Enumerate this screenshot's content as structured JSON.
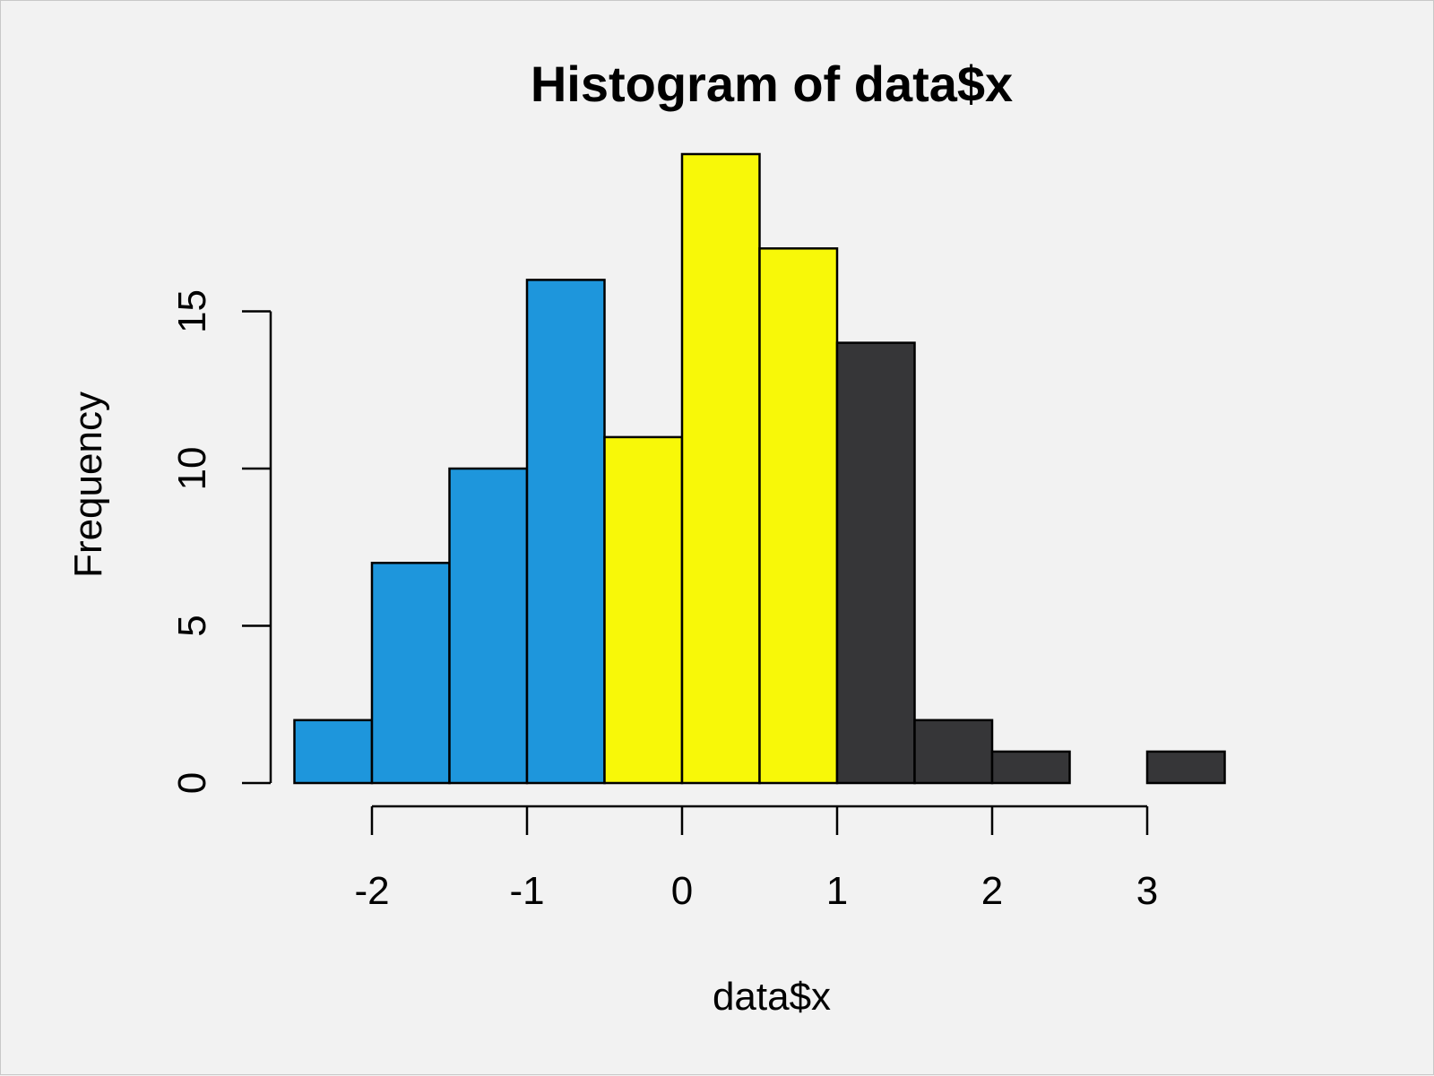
{
  "chart_data": {
    "type": "bar",
    "title": "Histogram of data$x",
    "xlabel": "data$x",
    "ylabel": "Frequency",
    "bin_edges": [
      -2.5,
      -2.0,
      -1.5,
      -1.0,
      -0.5,
      0.0,
      0.5,
      1.0,
      1.5,
      2.0,
      2.5,
      3.0,
      3.5
    ],
    "values": [
      2,
      7,
      10,
      16,
      11,
      20,
      17,
      14,
      2,
      1,
      0,
      1
    ],
    "colors": [
      "#1e96dc",
      "#1e96dc",
      "#1e96dc",
      "#1e96dc",
      "#f8f808",
      "#f8f808",
      "#f8f808",
      "#363638",
      "#363638",
      "#363638",
      "#363638",
      "#363638"
    ],
    "xticks": [
      -2,
      -1,
      0,
      1,
      2,
      3
    ],
    "xtick_labels": [
      "-2",
      "-1",
      "0",
      "1",
      "2",
      "3"
    ],
    "yticks": [
      0,
      5,
      10,
      15
    ],
    "ytick_labels": [
      "0",
      "5",
      "10",
      "15"
    ],
    "xlim": [
      -2.5,
      3.5
    ],
    "ylim": [
      0,
      20
    ],
    "grid": false,
    "legend": "none",
    "background": "#f2f2f2"
  }
}
